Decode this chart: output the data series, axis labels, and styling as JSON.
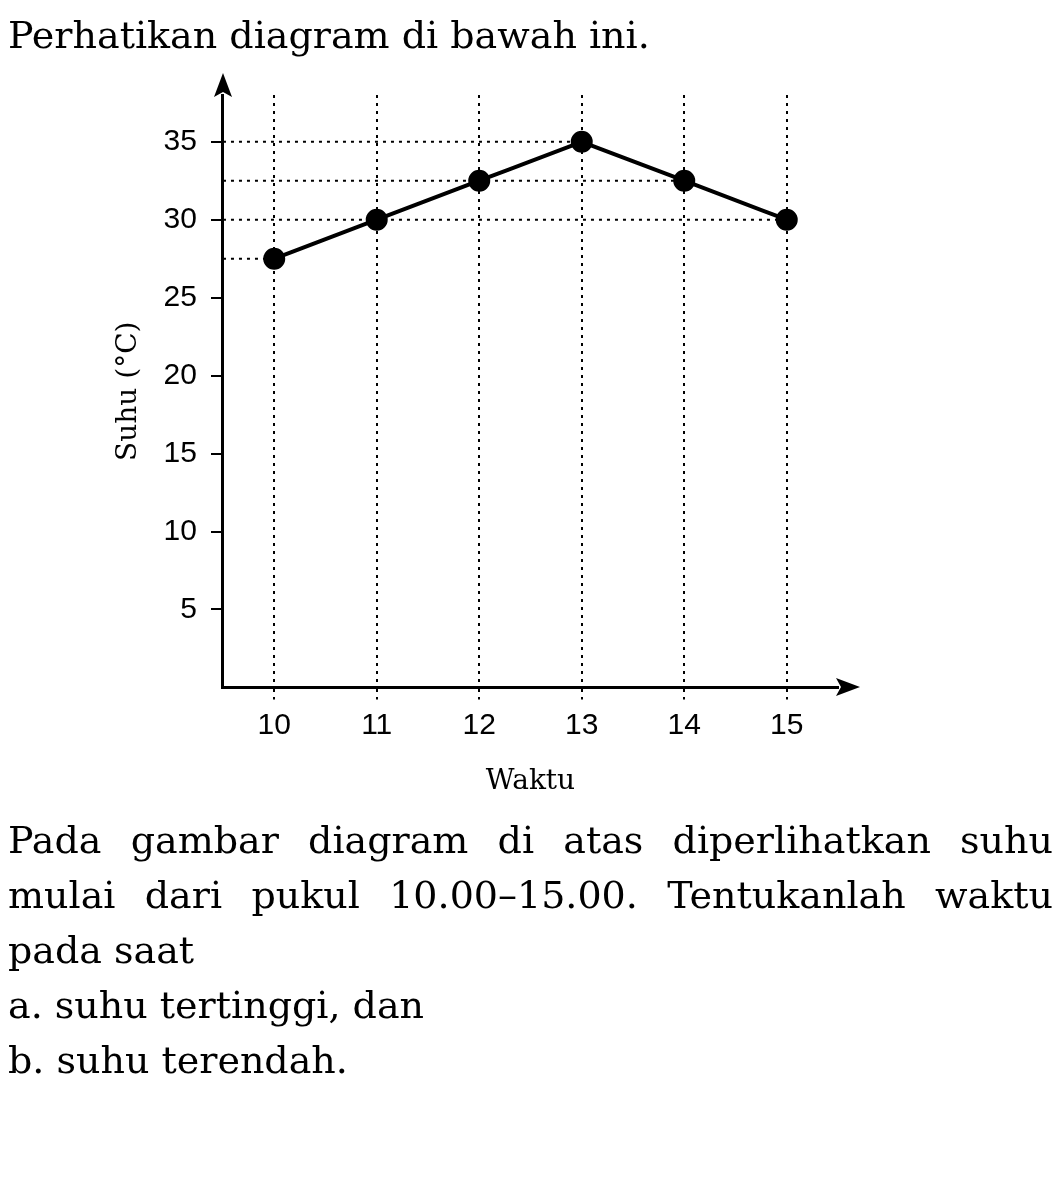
{
  "chart_data": {
    "type": "line",
    "title": "Perhatikan diagram di bawah ini.",
    "xlabel": "Waktu",
    "ylabel": "Suhu (°C)",
    "categories": [
      "10",
      "11",
      "12",
      "13",
      "14",
      "15"
    ],
    "series": [
      {
        "color": "#000000",
        "values": [
          27.5,
          30,
          32.5,
          35,
          32.5,
          30
        ]
      }
    ],
    "ylim": [
      0,
      38
    ],
    "yticks": [
      5,
      10,
      15,
      20,
      25,
      30,
      35
    ],
    "grid": "x",
    "ref_lines": [
      {
        "axis": "y",
        "value": 27.5,
        "color": "#000000",
        "line_style": "dotted"
      },
      {
        "axis": "y",
        "value": 30,
        "color": "#000000",
        "line_style": "dotted"
      },
      {
        "axis": "y",
        "value": 32.5,
        "color": "#000000",
        "line_style": "dotted"
      },
      {
        "axis": "y",
        "value": 35,
        "color": "#000000",
        "line_style": "dotted"
      }
    ],
    "legend": false,
    "marker": "circle",
    "line_style": "solid",
    "annotations": [
      "Pada gambar diagram di atas diperlihatkan suhu mulai dari pukul 10.00–15.00. Tentukanlah waktu pada saat",
      "a. suhu tertinggi, dan",
      "b. suhu terendah."
    ]
  }
}
